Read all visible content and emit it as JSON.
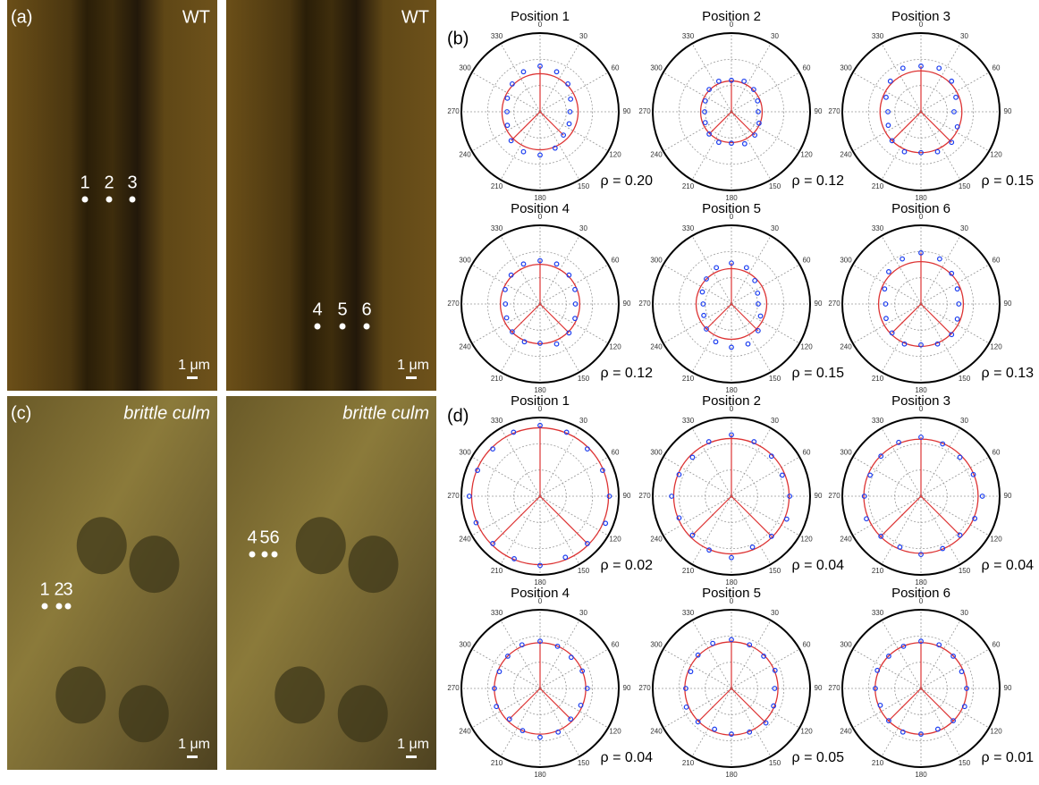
{
  "panels": {
    "a": {
      "label": "(a)",
      "images": [
        {
          "tag": "WT",
          "points": [
            "1",
            "2",
            "3"
          ],
          "scale": "1 μm"
        },
        {
          "tag": "WT",
          "points": [
            "4",
            "5",
            "6"
          ],
          "scale": "1 μm"
        }
      ]
    },
    "b": {
      "label": "(b)"
    },
    "c": {
      "label": "(c)",
      "images": [
        {
          "tag": "brittle culm",
          "points": [
            "1",
            "2",
            "3"
          ],
          "scale": "1 μm"
        },
        {
          "tag": "brittle culm",
          "points": [
            "4",
            "5",
            "6"
          ],
          "scale": "1 μm"
        }
      ]
    },
    "d": {
      "label": "(d)"
    }
  },
  "polar": {
    "angle_labels": [
      0,
      30,
      60,
      90,
      120,
      150,
      180,
      210,
      240,
      270,
      300,
      330
    ],
    "theta": [
      0,
      22.5,
      45,
      67.5,
      90,
      112.5,
      135,
      157.5,
      180,
      202.5,
      225,
      247.5,
      270,
      292.5,
      315,
      337.5
    ],
    "b": [
      {
        "title": "Position 1",
        "rho": "ρ = 0.20",
        "r": [
          0.58,
          0.55,
          0.5,
          0.42,
          0.38,
          0.4,
          0.42,
          0.5,
          0.55,
          0.55,
          0.52,
          0.45,
          0.42,
          0.45,
          0.5,
          0.55
        ]
      },
      {
        "title": "Position 2",
        "rho": "ρ = 0.12",
        "r": [
          0.4,
          0.42,
          0.4,
          0.36,
          0.34,
          0.38,
          0.42,
          0.44,
          0.4,
          0.42,
          0.4,
          0.36,
          0.34,
          0.36,
          0.4,
          0.42
        ]
      },
      {
        "title": "Position 3",
        "rho": "ρ = 0.15",
        "r": [
          0.58,
          0.6,
          0.55,
          0.48,
          0.42,
          0.5,
          0.55,
          0.55,
          0.52,
          0.55,
          0.52,
          0.45,
          0.42,
          0.48,
          0.55,
          0.6
        ]
      },
      {
        "title": "Position 4",
        "rho": "ρ = 0.12",
        "r": [
          0.55,
          0.55,
          0.52,
          0.48,
          0.45,
          0.48,
          0.52,
          0.55,
          0.5,
          0.52,
          0.5,
          0.46,
          0.44,
          0.48,
          0.52,
          0.55
        ]
      },
      {
        "title": "Position 5",
        "rho": "ρ = 0.15",
        "r": [
          0.52,
          0.5,
          0.42,
          0.36,
          0.34,
          0.4,
          0.48,
          0.55,
          0.55,
          0.52,
          0.45,
          0.38,
          0.36,
          0.4,
          0.45,
          0.5
        ]
      },
      {
        "title": "Position 6",
        "rho": "ρ = 0.13",
        "r": [
          0.65,
          0.62,
          0.55,
          0.5,
          0.48,
          0.5,
          0.55,
          0.55,
          0.52,
          0.55,
          0.52,
          0.48,
          0.45,
          0.5,
          0.58,
          0.62
        ]
      }
    ],
    "d": [
      {
        "title": "Position 1",
        "rho": "ρ = 0.02",
        "r": [
          0.9,
          0.88,
          0.85,
          0.86,
          0.88,
          0.9,
          0.85,
          0.84,
          0.88,
          0.86,
          0.85,
          0.88,
          0.9,
          0.86,
          0.85,
          0.88
        ]
      },
      {
        "title": "Position 2",
        "rho": "ρ = 0.04",
        "r": [
          0.78,
          0.75,
          0.72,
          0.7,
          0.74,
          0.76,
          0.72,
          0.7,
          0.78,
          0.74,
          0.7,
          0.72,
          0.76,
          0.72,
          0.7,
          0.75
        ]
      },
      {
        "title": "Position 3",
        "rho": "ρ = 0.04",
        "r": [
          0.75,
          0.72,
          0.7,
          0.72,
          0.78,
          0.74,
          0.7,
          0.72,
          0.74,
          0.7,
          0.72,
          0.75,
          0.72,
          0.7,
          0.72,
          0.74
        ]
      },
      {
        "title": "Position 4",
        "rho": "ρ = 0.04",
        "r": [
          0.6,
          0.58,
          0.56,
          0.58,
          0.6,
          0.56,
          0.55,
          0.6,
          0.62,
          0.58,
          0.55,
          0.6,
          0.58,
          0.56,
          0.58,
          0.6
        ]
      },
      {
        "title": "Position 5",
        "rho": "ρ = 0.05",
        "r": [
          0.62,
          0.6,
          0.58,
          0.6,
          0.55,
          0.58,
          0.62,
          0.6,
          0.58,
          0.56,
          0.6,
          0.62,
          0.58,
          0.56,
          0.6,
          0.62
        ]
      },
      {
        "title": "Position 6",
        "rho": "ρ = 0.01",
        "r": [
          0.6,
          0.6,
          0.58,
          0.56,
          0.58,
          0.6,
          0.58,
          0.56,
          0.58,
          0.6,
          0.58,
          0.56,
          0.58,
          0.6,
          0.58,
          0.58
        ]
      }
    ]
  }
}
